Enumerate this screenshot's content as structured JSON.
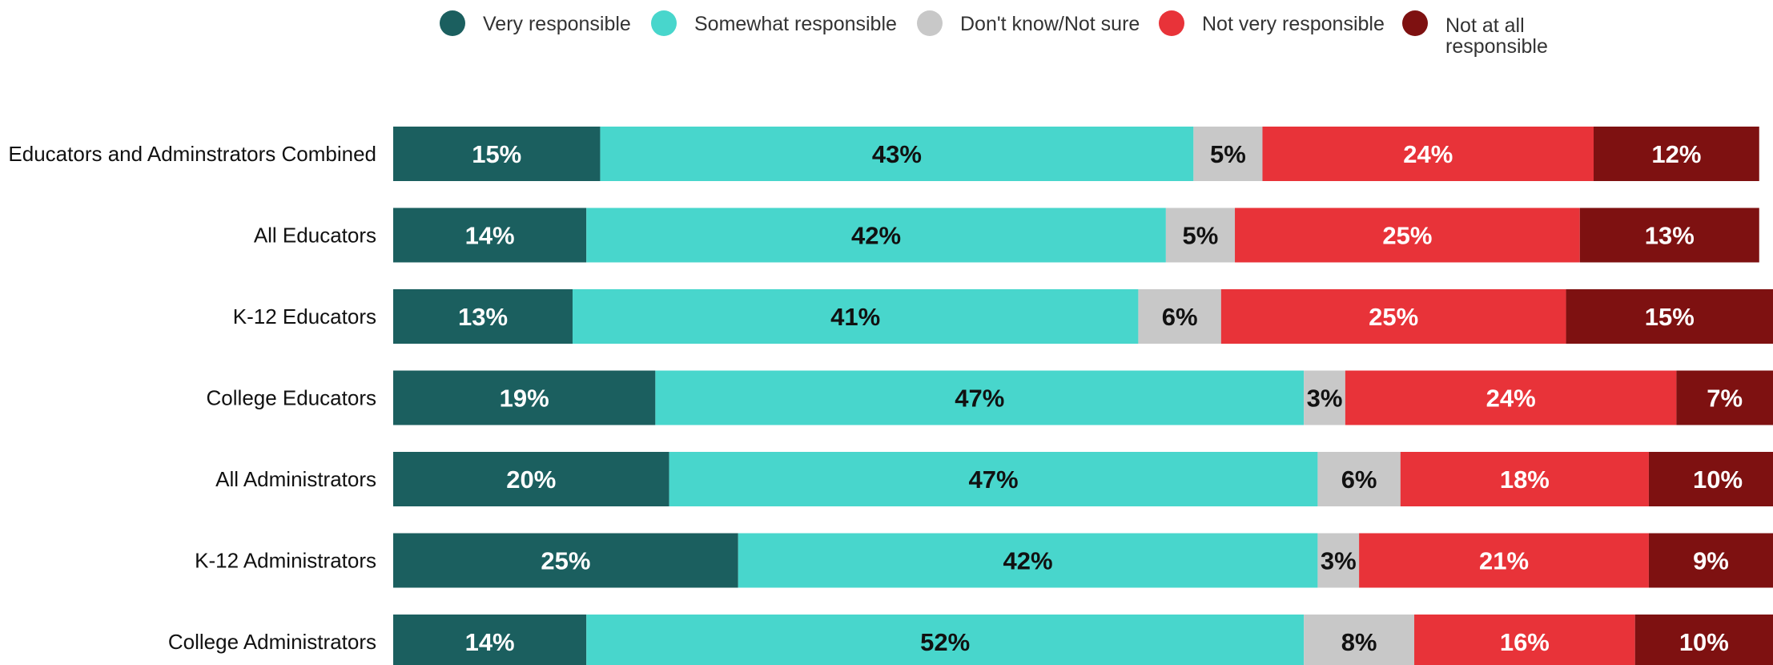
{
  "chart_data": {
    "type": "bar",
    "orientation": "horizontal",
    "stacked": true,
    "percent_stacked": true,
    "title": "",
    "xlabel": "",
    "ylabel": "",
    "xlim": [
      0,
      100
    ],
    "grid": false,
    "legend_position": "top",
    "categories": [
      "Educators and Adminstrators Combined",
      "All Educators",
      "K-12 Educators",
      "College Educators",
      "All Administrators",
      "K-12 Administrators",
      "College Administrators"
    ],
    "series": [
      {
        "name": "Very responsible",
        "color": "#1b5f5f",
        "label_color": "#ffffff",
        "values": [
          15,
          14,
          13,
          19,
          20,
          25,
          14
        ],
        "labels": [
          "15%",
          "14%",
          "13%",
          "19%",
          "20%",
          "25%",
          "14%"
        ]
      },
      {
        "name": "Somewhat responsible",
        "color": "#48d6cc",
        "label_color": "#111111",
        "values": [
          43,
          42,
          41,
          47,
          47,
          42,
          52
        ],
        "labels": [
          "43%",
          "42%",
          "41%",
          "47%",
          "47%",
          "42%",
          "52%"
        ]
      },
      {
        "name": "Don't know/Not sure",
        "color": "#c8c8c8",
        "label_color": "#111111",
        "values": [
          5,
          5,
          6,
          3,
          6,
          3,
          8
        ],
        "labels": [
          "5%",
          "5%",
          "6%",
          "3%",
          "6%",
          "3%",
          "8%"
        ]
      },
      {
        "name": "Not very responsible",
        "color": "#e83339",
        "label_color": "#ffffff",
        "values": [
          24,
          25,
          25,
          24,
          18,
          21,
          16
        ],
        "labels": [
          "24%",
          "25%",
          "25%",
          "24%",
          "18%",
          "21%",
          "16%"
        ]
      },
      {
        "name": "Not at all responsible",
        "color": "#7e1111",
        "label_color": "#ffffff",
        "values": [
          12,
          13,
          15,
          7,
          10,
          9,
          10
        ],
        "labels": [
          "12%",
          "13%",
          "15%",
          "7%",
          "10%",
          "9%",
          "10%"
        ]
      }
    ]
  }
}
